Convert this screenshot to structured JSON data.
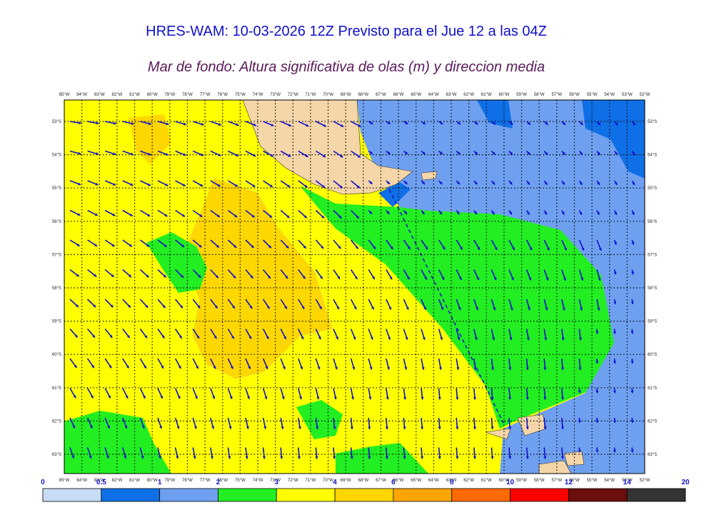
{
  "header": {
    "title": "HRES-WAM: 10-03-2026 12Z Previsto para el Jue 12 a las 04Z",
    "subtitle": "Mar de fondo: Altura significativa de olas (m) y direccion media"
  },
  "map": {
    "longitudes": [
      "85°W",
      "84°W",
      "83°W",
      "82°W",
      "81°W",
      "80°W",
      "79°W",
      "78°W",
      "77°W",
      "76°W",
      "75°W",
      "74°W",
      "73°W",
      "72°W",
      "71°W",
      "70°W",
      "69°W",
      "68°W",
      "67°W",
      "66°W",
      "65°W",
      "64°W",
      "63°W",
      "62°W",
      "61°W",
      "60°W",
      "59°W",
      "58°W",
      "57°W",
      "56°W",
      "55°W",
      "54°W",
      "53°W",
      "52°W"
    ],
    "latitudes": [
      "53°S",
      "54°S",
      "55°S",
      "56°S",
      "57°S",
      "58°S",
      "59°S",
      "60°S",
      "61°S",
      "62°S",
      "63°S"
    ]
  },
  "legend": {
    "labels": [
      "0",
      "0.5",
      "1",
      "2",
      "3",
      "4",
      "6",
      "8",
      "10",
      "12",
      "14",
      "20"
    ],
    "colors": [
      "#c6dcf5",
      "#0f6fe6",
      "#6fa0f0",
      "#22ee22",
      "#ffff00",
      "#ffd700",
      "#ffa500",
      "#ff6a00",
      "#ff0000",
      "#6b0e0e",
      "#333333"
    ]
  }
}
